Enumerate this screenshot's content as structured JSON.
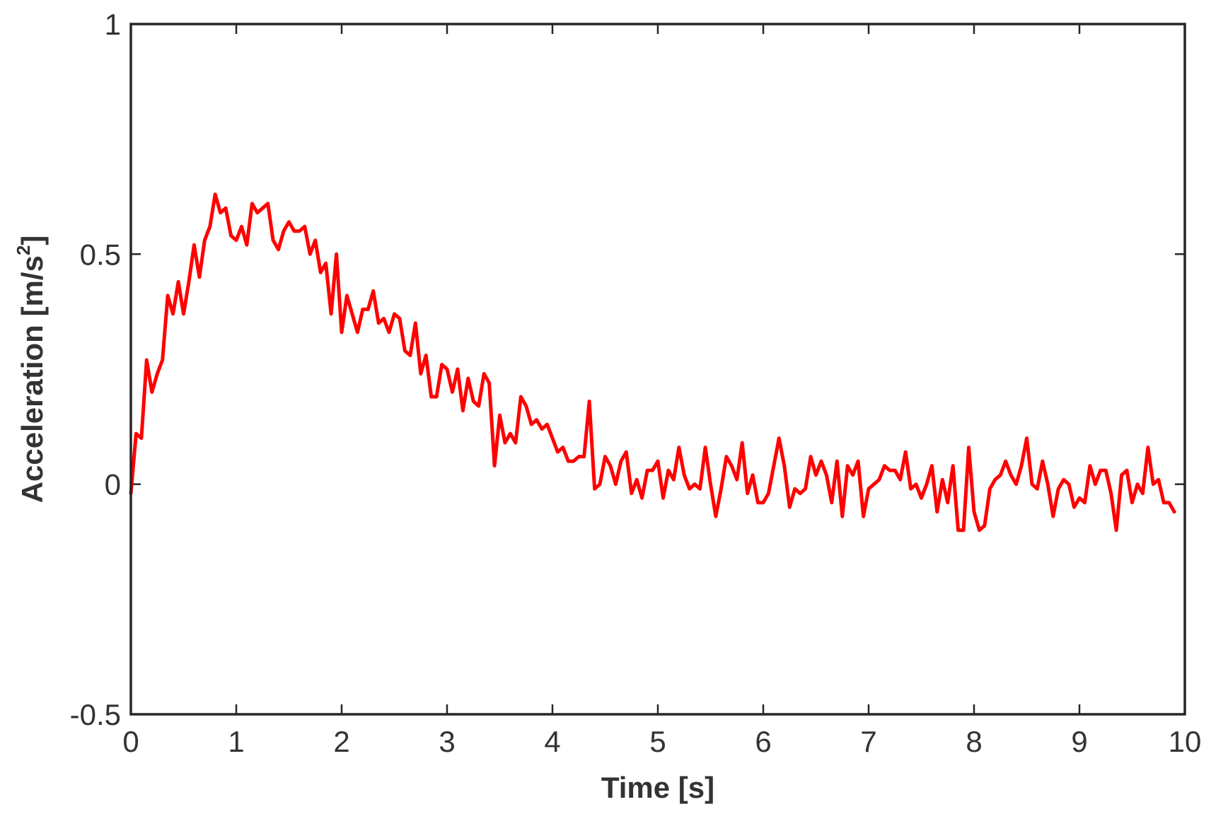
{
  "chart_data": {
    "type": "line",
    "title": "",
    "xlabel": "Time [s]",
    "ylabel_parts": {
      "main": "Acceleration [m/s",
      "sup": "2",
      "end": "]"
    },
    "xlim": [
      0,
      10
    ],
    "ylim": [
      -0.5,
      1
    ],
    "xticks": [
      0,
      1,
      2,
      3,
      4,
      5,
      6,
      7,
      8,
      9,
      10
    ],
    "xtick_labels": [
      "0",
      "1",
      "2",
      "3",
      "4",
      "5",
      "6",
      "7",
      "8",
      "9",
      "10"
    ],
    "yticks": [
      -0.5,
      0,
      0.5,
      1
    ],
    "ytick_labels": [
      "-0.5",
      "0",
      "0.5",
      "1"
    ],
    "grid": false,
    "legend": "none",
    "series": [
      {
        "color": "#ff0000",
        "x": [
          0.0,
          0.05,
          0.1,
          0.15,
          0.2,
          0.25,
          0.3,
          0.35,
          0.4,
          0.45,
          0.5,
          0.55,
          0.6,
          0.65,
          0.7,
          0.75,
          0.8,
          0.85,
          0.9,
          0.95,
          1.0,
          1.05,
          1.1,
          1.15,
          1.2,
          1.25,
          1.3,
          1.35,
          1.4,
          1.45,
          1.5,
          1.55,
          1.6,
          1.65,
          1.7,
          1.75,
          1.8,
          1.85,
          1.9,
          1.95,
          2.0,
          2.05,
          2.1,
          2.15,
          2.2,
          2.25,
          2.3,
          2.35,
          2.4,
          2.45,
          2.5,
          2.55,
          2.6,
          2.65,
          2.7,
          2.75,
          2.8,
          2.85,
          2.9,
          2.95,
          3.0,
          3.05,
          3.1,
          3.15,
          3.2,
          3.25,
          3.3,
          3.35,
          3.4,
          3.45,
          3.5,
          3.55,
          3.6,
          3.65,
          3.7,
          3.75,
          3.8,
          3.85,
          3.9,
          3.95,
          4.0,
          4.05,
          4.1,
          4.15,
          4.2,
          4.25,
          4.3,
          4.35,
          4.4,
          4.45,
          4.5,
          4.55,
          4.6,
          4.65,
          4.7,
          4.75,
          4.8,
          4.85,
          4.9,
          4.95,
          5.0,
          5.05,
          5.1,
          5.15,
          5.2,
          5.25,
          5.3,
          5.35,
          5.4,
          5.45,
          5.5,
          5.55,
          5.6,
          5.65,
          5.7,
          5.75,
          5.8,
          5.85,
          5.9,
          5.95,
          6.0,
          6.05,
          6.1,
          6.15,
          6.2,
          6.25,
          6.3,
          6.35,
          6.4,
          6.45,
          6.5,
          6.55,
          6.6,
          6.65,
          6.7,
          6.75,
          6.8,
          6.85,
          6.9,
          6.95,
          7.0,
          7.05,
          7.1,
          7.15,
          7.2,
          7.25,
          7.3,
          7.35,
          7.4,
          7.45,
          7.5,
          7.55,
          7.6,
          7.65,
          7.7,
          7.75,
          7.8,
          7.85,
          7.9,
          7.95,
          8.0,
          8.05,
          8.1,
          8.15,
          8.2,
          8.25,
          8.3,
          8.35,
          8.4,
          8.45,
          8.5,
          8.55,
          8.6,
          8.65,
          8.7,
          8.75,
          8.8,
          8.85,
          8.9,
          8.95,
          9.0,
          9.05,
          9.1,
          9.15,
          9.2,
          9.25,
          9.3,
          9.35,
          9.4,
          9.45,
          9.5,
          9.55,
          9.6,
          9.65,
          9.7,
          9.75,
          9.8,
          9.85,
          9.9
        ],
        "y": [
          -0.02,
          0.11,
          0.1,
          0.27,
          0.2,
          0.24,
          0.27,
          0.41,
          0.37,
          0.44,
          0.37,
          0.44,
          0.52,
          0.45,
          0.53,
          0.56,
          0.63,
          0.59,
          0.6,
          0.54,
          0.53,
          0.56,
          0.52,
          0.61,
          0.59,
          0.6,
          0.61,
          0.53,
          0.51,
          0.55,
          0.57,
          0.55,
          0.55,
          0.56,
          0.5,
          0.53,
          0.46,
          0.48,
          0.37,
          0.5,
          0.33,
          0.41,
          0.37,
          0.33,
          0.38,
          0.38,
          0.42,
          0.35,
          0.36,
          0.33,
          0.37,
          0.36,
          0.29,
          0.28,
          0.35,
          0.24,
          0.28,
          0.19,
          0.19,
          0.26,
          0.25,
          0.2,
          0.25,
          0.16,
          0.23,
          0.18,
          0.17,
          0.24,
          0.22,
          0.04,
          0.15,
          0.09,
          0.11,
          0.09,
          0.19,
          0.17,
          0.13,
          0.14,
          0.12,
          0.13,
          0.1,
          0.07,
          0.08,
          0.05,
          0.05,
          0.06,
          0.06,
          0.18,
          -0.01,
          0.0,
          0.06,
          0.04,
          0.0,
          0.05,
          0.07,
          -0.02,
          0.01,
          -0.03,
          0.03,
          0.03,
          0.05,
          -0.03,
          0.03,
          0.01,
          0.08,
          0.02,
          -0.01,
          0.0,
          -0.01,
          0.08,
          0.0,
          -0.07,
          -0.01,
          0.06,
          0.04,
          0.01,
          0.09,
          -0.02,
          0.02,
          -0.04,
          -0.04,
          -0.02,
          0.04,
          0.1,
          0.04,
          -0.05,
          -0.01,
          -0.02,
          -0.01,
          0.06,
          0.02,
          0.05,
          0.02,
          -0.04,
          0.05,
          -0.07,
          0.04,
          0.02,
          0.05,
          -0.07,
          -0.01,
          0.0,
          0.01,
          0.04,
          0.03,
          0.03,
          0.01,
          0.07,
          -0.01,
          0.0,
          -0.03,
          0.0,
          0.04,
          -0.06,
          0.01,
          -0.04,
          0.04,
          -0.1,
          -0.1,
          0.08,
          -0.06,
          -0.1,
          -0.09,
          -0.01,
          0.01,
          0.02,
          0.05,
          0.02,
          0.0,
          0.04,
          0.1,
          0.0,
          -0.01,
          0.05,
          0.0,
          -0.07,
          -0.01,
          0.01,
          0.0,
          -0.05,
          -0.03,
          -0.04,
          0.04,
          0.0,
          0.03,
          0.03,
          -0.02,
          -0.1,
          0.02,
          0.03,
          -0.04,
          0.0,
          -0.02,
          0.08,
          0.0,
          0.01,
          -0.04,
          -0.04,
          -0.06
        ]
      }
    ]
  }
}
